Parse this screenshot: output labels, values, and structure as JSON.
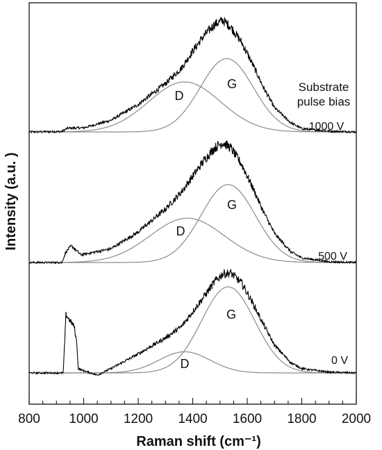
{
  "chart_data": {
    "type": "line",
    "title": "",
    "xlabel": "Raman shift (cm⁻¹)",
    "ylabel": "Intensity (a.u. )",
    "xlim": [
      800,
      2000
    ],
    "x_ticks": [
      800,
      1000,
      1200,
      1400,
      1600,
      1800,
      2000
    ],
    "y_tick_labels": false,
    "legend_title": "Substrate pulse bias",
    "legend_title_lines": [
      "Substrate",
      "pulse bias"
    ],
    "stacked": true,
    "panels": [
      {
        "bias": "1000 V",
        "peak_labels": [
          "D",
          "G"
        ],
        "spectrum": [
          [
            800,
            0
          ],
          [
            920,
            0.5
          ],
          [
            940,
            4.5
          ],
          [
            980,
            4.8
          ],
          [
            1000,
            5
          ],
          [
            1100,
            14
          ],
          [
            1200,
            33
          ],
          [
            1300,
            58
          ],
          [
            1360,
            77
          ],
          [
            1400,
            97
          ],
          [
            1440,
            115
          ],
          [
            1480,
            129
          ],
          [
            1510,
            134
          ],
          [
            1540,
            126
          ],
          [
            1580,
            107
          ],
          [
            1620,
            81
          ],
          [
            1660,
            53
          ],
          [
            1700,
            29
          ],
          [
            1760,
            11
          ],
          [
            1800,
            4
          ],
          [
            1900,
            1
          ],
          [
            2000,
            0
          ]
        ],
        "d_band": {
          "center": 1370,
          "height": 60,
          "width": 310
        },
        "g_band": {
          "center": 1525,
          "height": 88,
          "width": 230
        }
      },
      {
        "bias": "500 V",
        "peak_labels": [
          "D",
          "G"
        ],
        "spectrum": [
          [
            800,
            0
          ],
          [
            920,
            0
          ],
          [
            935,
            14
          ],
          [
            955,
            22
          ],
          [
            975,
            15
          ],
          [
            990,
            10
          ],
          [
            1100,
            18
          ],
          [
            1200,
            40
          ],
          [
            1300,
            70
          ],
          [
            1360,
            93
          ],
          [
            1400,
            113
          ],
          [
            1440,
            133
          ],
          [
            1480,
            150
          ],
          [
            1510,
            157
          ],
          [
            1540,
            150
          ],
          [
            1580,
            128
          ],
          [
            1620,
            98
          ],
          [
            1660,
            66
          ],
          [
            1700,
            38
          ],
          [
            1760,
            14
          ],
          [
            1800,
            6
          ],
          [
            1900,
            1
          ],
          [
            2000,
            0
          ]
        ],
        "d_band": {
          "center": 1380,
          "height": 58,
          "width": 320
        },
        "g_band": {
          "center": 1530,
          "height": 102,
          "width": 235
        }
      },
      {
        "bias": "0 V",
        "peak_labels": [
          "D",
          "G"
        ],
        "spectrum": [
          [
            800,
            0
          ],
          [
            925,
            0
          ],
          [
            935,
            80
          ],
          [
            945,
            74
          ],
          [
            965,
            64
          ],
          [
            975,
            40
          ],
          [
            980,
            6
          ],
          [
            1000,
            3
          ],
          [
            1050,
            -3
          ],
          [
            1100,
            6
          ],
          [
            1200,
            26
          ],
          [
            1300,
            48
          ],
          [
            1360,
            64
          ],
          [
            1400,
            84
          ],
          [
            1440,
            104
          ],
          [
            1480,
            125
          ],
          [
            1510,
            136
          ],
          [
            1540,
            137
          ],
          [
            1580,
            123
          ],
          [
            1620,
            96
          ],
          [
            1660,
            66
          ],
          [
            1700,
            38
          ],
          [
            1760,
            14
          ],
          [
            1800,
            6
          ],
          [
            1900,
            1
          ],
          [
            2000,
            0
          ]
        ],
        "d_band": {
          "center": 1370,
          "height": 29,
          "width": 220
        },
        "g_band": {
          "center": 1530,
          "height": 118,
          "width": 230
        }
      }
    ]
  }
}
